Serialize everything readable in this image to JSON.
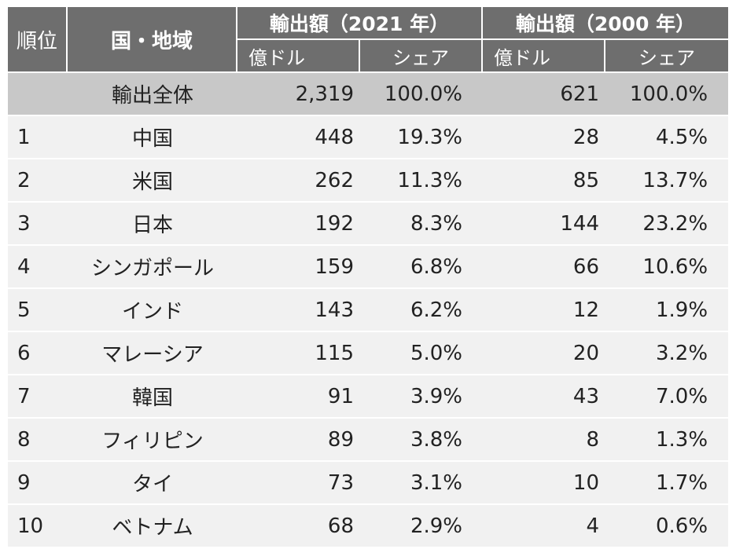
{
  "chart_data": {
    "type": "table",
    "columns": {
      "rank": "順位",
      "country": "国・地域",
      "export_2021": "輸出額（2021 年）",
      "export_2000": "輸出額（2000 年）",
      "unit_value": "億ドル",
      "unit_share": "シェア"
    },
    "total": {
      "label": "輸出全体",
      "v2021": "2,319",
      "s2021": "100.0%",
      "v2000": "621",
      "s2000": "100.0%"
    },
    "rows": [
      {
        "rank": "1",
        "name": "中国",
        "v2021": "448",
        "s2021": "19.3%",
        "v2000": "28",
        "s2000": "4.5%"
      },
      {
        "rank": "2",
        "name": "米国",
        "v2021": "262",
        "s2021": "11.3%",
        "v2000": "85",
        "s2000": "13.7%"
      },
      {
        "rank": "3",
        "name": "日本",
        "v2021": "192",
        "s2021": "8.3%",
        "v2000": "144",
        "s2000": "23.2%"
      },
      {
        "rank": "4",
        "name": "シンガポール",
        "v2021": "159",
        "s2021": "6.8%",
        "v2000": "66",
        "s2000": "10.6%"
      },
      {
        "rank": "5",
        "name": "インド",
        "v2021": "143",
        "s2021": "6.2%",
        "v2000": "12",
        "s2000": "1.9%"
      },
      {
        "rank": "6",
        "name": "マレーシア",
        "v2021": "115",
        "s2021": "5.0%",
        "v2000": "20",
        "s2000": "3.2%"
      },
      {
        "rank": "7",
        "name": "韓国",
        "v2021": "91",
        "s2021": "3.9%",
        "v2000": "43",
        "s2000": "7.0%"
      },
      {
        "rank": "8",
        "name": "フィリピン",
        "v2021": "89",
        "s2021": "3.8%",
        "v2000": "8",
        "s2000": "1.3%"
      },
      {
        "rank": "9",
        "name": "タイ",
        "v2021": "73",
        "s2021": "3.1%",
        "v2000": "10",
        "s2000": "1.7%"
      },
      {
        "rank": "10",
        "name": "ベトナム",
        "v2021": "68",
        "s2021": "2.9%",
        "v2000": "4",
        "s2000": "0.6%"
      }
    ]
  },
  "colors": {
    "header_bg": "#6e6e6e",
    "total_bg": "#c8c8c8",
    "row_bg": "#f1f1f1"
  }
}
